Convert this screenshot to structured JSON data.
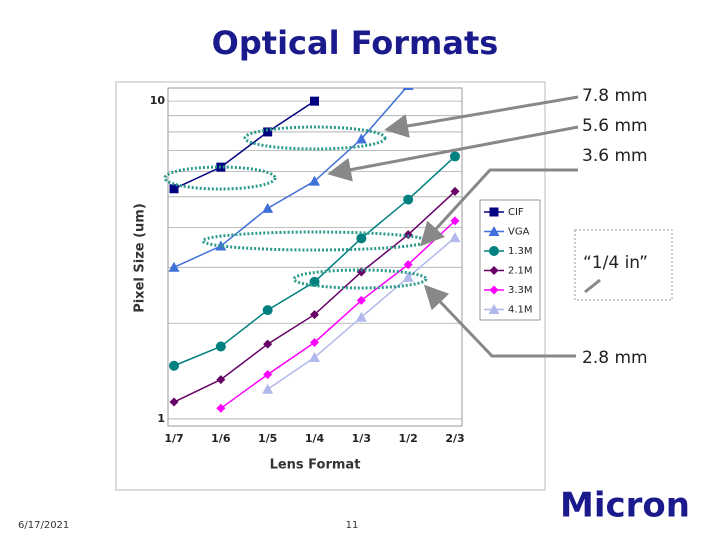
{
  "chart_data": {
    "type": "line",
    "title": "Optical Formats",
    "x_label": "Lens Format",
    "y_label": "Pixel Size (um)",
    "categories": [
      "1/7",
      "1/6",
      "1/5",
      "1/4",
      "1/3",
      "1/2",
      "2/3"
    ],
    "log_y": true,
    "ylim": [
      0.95,
      11
    ],
    "yticks": [
      1,
      10
    ],
    "minor_grid": [
      2,
      3,
      4,
      5,
      6,
      7,
      8,
      9
    ],
    "grid": true,
    "legend": "right",
    "series": [
      {
        "name": "CIF",
        "color": "#000080",
        "marker": "square",
        "values": [
          5.3,
          6.2,
          8.0,
          10.0,
          null,
          null,
          null
        ]
      },
      {
        "name": "VGA",
        "color": "#3f6fd8",
        "marker": "triangle",
        "values": [
          3.0,
          3.5,
          4.6,
          5.6,
          7.6,
          11.2,
          null
        ]
      },
      {
        "name": "1.3M",
        "color": "#00807f",
        "marker": "circle",
        "values": [
          1.47,
          1.69,
          2.2,
          2.7,
          3.7,
          4.9,
          6.7
        ]
      },
      {
        "name": "2.1M",
        "color": "#660066",
        "marker": "diamond",
        "values": [
          1.13,
          1.33,
          1.72,
          2.13,
          2.9,
          3.8,
          5.2
        ]
      },
      {
        "name": "3.3M",
        "color": "#ff00ff",
        "marker": "diamond",
        "values": [
          null,
          1.08,
          1.38,
          1.74,
          2.36,
          3.06,
          4.2
        ]
      },
      {
        "name": "4.1M",
        "color": "#b0b8ec",
        "marker": "triangle",
        "values": [
          null,
          null,
          1.24,
          1.56,
          2.09,
          2.79,
          3.72
        ]
      }
    ],
    "annotations": [
      "7.8 mm",
      "5.6 mm",
      "3.6 mm",
      "“1/4 in”",
      "2.8 mm"
    ]
  },
  "slide": {
    "date": "6/17/2021",
    "page": "11",
    "logo": "Micron"
  }
}
